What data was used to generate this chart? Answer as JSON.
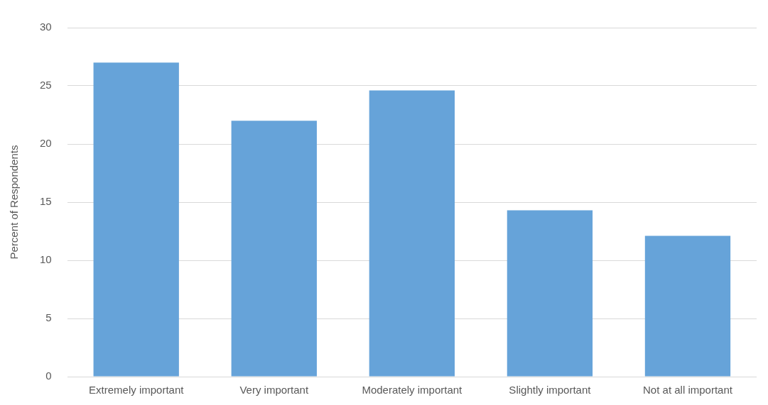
{
  "chart_data": {
    "type": "bar",
    "ylabel": "Percent of Respondents",
    "categories": [
      "Extremely important",
      "Very important",
      "Moderately important",
      "Slightly important",
      "Not at all important"
    ],
    "values": [
      27.0,
      22.0,
      24.6,
      14.3,
      12.1
    ],
    "color": "#66a3d9",
    "ylim": [
      0,
      30
    ],
    "yticks": [
      0,
      5,
      10,
      15,
      20,
      25,
      30
    ],
    "grid": "y",
    "legend": false
  }
}
